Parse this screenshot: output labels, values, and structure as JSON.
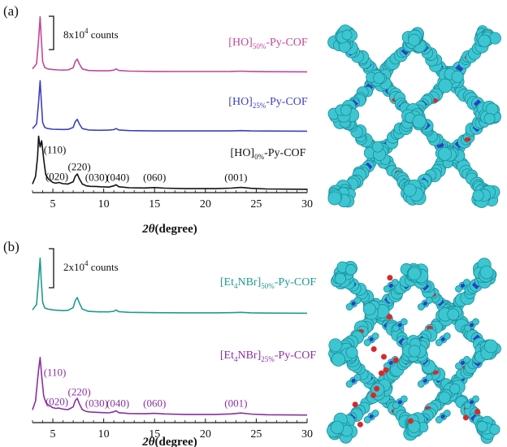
{
  "figure": {
    "panels": [
      {
        "label": "(a)"
      },
      {
        "label": "(b)"
      }
    ]
  },
  "chart_data": [
    {
      "type": "line",
      "panel": "(a)",
      "xlabel_symbol": "2θ",
      "xlabel_unit": "(degree)",
      "xlim": [
        3,
        30
      ],
      "xticks": [
        5,
        10,
        15,
        20,
        25,
        30
      ],
      "scale_bar": {
        "mantissa": "8x10",
        "exponent": "4",
        "unit": "counts"
      },
      "series": [
        {
          "name_main": "[HO]",
          "name_sub": "50%",
          "name_tail": "-Py-COF",
          "color": "#c0479a",
          "x": [
            3.0,
            3.4,
            3.6,
            3.75,
            3.85,
            4.0,
            4.2,
            4.5,
            5.0,
            5.5,
            6.0,
            6.5,
            7.0,
            7.2,
            7.4,
            7.6,
            7.9,
            8.5,
            9.5,
            10.5,
            11.0,
            11.2,
            11.5,
            12.5,
            15.0,
            18.0,
            21.0,
            22.5,
            23.5,
            24.5,
            26.0,
            30.0
          ],
          "y": [
            0.22,
            0.55,
            2.1,
            3.6,
            2.4,
            0.7,
            0.32,
            0.22,
            0.18,
            0.16,
            0.15,
            0.16,
            0.3,
            0.7,
            0.85,
            0.55,
            0.22,
            0.12,
            0.1,
            0.1,
            0.14,
            0.22,
            0.12,
            0.08,
            0.06,
            0.05,
            0.05,
            0.06,
            0.08,
            0.06,
            0.04,
            0.03
          ]
        },
        {
          "name_main": "[HO]",
          "name_sub": "25%",
          "name_tail": "-Py-COF",
          "color": "#3d42b8",
          "x": [
            3.0,
            3.4,
            3.6,
            3.75,
            3.85,
            4.0,
            4.2,
            4.5,
            5.0,
            5.5,
            6.0,
            6.5,
            7.0,
            7.2,
            7.4,
            7.6,
            7.9,
            8.5,
            9.5,
            10.5,
            11.0,
            11.2,
            11.5,
            12.5,
            15.0,
            18.0,
            21.0,
            22.5,
            23.5,
            24.5,
            26.0,
            30.0
          ],
          "y": [
            0.2,
            0.5,
            1.9,
            3.3,
            2.2,
            0.6,
            0.28,
            0.2,
            0.16,
            0.15,
            0.14,
            0.15,
            0.28,
            0.65,
            0.8,
            0.5,
            0.2,
            0.11,
            0.09,
            0.1,
            0.13,
            0.2,
            0.11,
            0.07,
            0.05,
            0.05,
            0.05,
            0.05,
            0.07,
            0.05,
            0.04,
            0.03
          ]
        },
        {
          "name_main": "[HO]",
          "name_sub": "0%",
          "name_tail": "-Py-COF",
          "color": "#111111",
          "x": [
            3.0,
            3.3,
            3.5,
            3.6,
            3.75,
            3.9,
            4.1,
            4.3,
            4.6,
            5.0,
            5.3,
            5.6,
            6.0,
            6.5,
            7.0,
            7.2,
            7.4,
            7.6,
            7.9,
            8.3,
            8.7,
            9.2,
            9.7,
            10.5,
            11.0,
            11.2,
            11.5,
            12.5,
            14.0,
            15.0,
            16.0,
            18.0,
            21.0,
            22.5,
            23.5,
            24.5,
            26.0,
            30.0
          ],
          "y": [
            0.4,
            0.9,
            2.2,
            3.5,
            2.8,
            3.2,
            2.0,
            1.0,
            0.7,
            0.5,
            0.45,
            0.5,
            0.42,
            0.4,
            0.55,
            0.9,
            1.05,
            0.75,
            0.4,
            0.28,
            0.25,
            0.24,
            0.22,
            0.2,
            0.28,
            0.35,
            0.22,
            0.16,
            0.14,
            0.17,
            0.13,
            0.1,
            0.1,
            0.13,
            0.18,
            0.12,
            0.08,
            0.06
          ]
        }
      ],
      "peak_labels": [
        {
          "text": "(110)",
          "x": 5.2,
          "dy": 2.4,
          "color": "#111111"
        },
        {
          "text": "(020)",
          "x": 5.4,
          "dy": 0.65,
          "color": "#111111"
        },
        {
          "text": "(220)",
          "x": 7.6,
          "dy": 1.3,
          "color": "#111111"
        },
        {
          "text": "(030)",
          "x": 9.3,
          "dy": 0.6,
          "color": "#111111"
        },
        {
          "text": "(040)",
          "x": 11.4,
          "dy": 0.6,
          "color": "#111111"
        },
        {
          "text": "(060)",
          "x": 15.0,
          "dy": 0.6,
          "color": "#111111"
        },
        {
          "text": "(001)",
          "x": 23.0,
          "dy": 0.6,
          "color": "#111111"
        }
      ]
    },
    {
      "type": "line",
      "panel": "(b)",
      "xlabel_symbol": "2θ",
      "xlabel_unit": "(degree)",
      "xlim": [
        3,
        30
      ],
      "xticks": [
        5,
        10,
        15,
        20,
        25,
        30
      ],
      "scale_bar": {
        "mantissa": "2x10",
        "exponent": "4",
        "unit": "counts"
      },
      "series": [
        {
          "name_main": "[Et",
          "name_mid_sub": "4",
          "name_mid": "NBr]",
          "name_sub": "50%",
          "name_tail": "-Py-COF",
          "color": "#1f9a8f",
          "x": [
            3.0,
            3.4,
            3.6,
            3.75,
            3.85,
            4.0,
            4.2,
            4.5,
            5.0,
            5.5,
            6.0,
            6.5,
            7.0,
            7.2,
            7.4,
            7.6,
            7.9,
            8.5,
            9.5,
            10.5,
            11.0,
            11.2,
            11.5,
            12.5,
            15.0,
            18.0,
            21.0,
            22.5,
            23.5,
            24.5,
            26.0,
            30.0
          ],
          "y": [
            0.25,
            0.6,
            2.2,
            3.6,
            2.3,
            0.75,
            0.38,
            0.3,
            0.25,
            0.22,
            0.2,
            0.22,
            0.4,
            0.85,
            1.05,
            0.7,
            0.3,
            0.15,
            0.12,
            0.12,
            0.16,
            0.24,
            0.13,
            0.09,
            0.07,
            0.06,
            0.06,
            0.07,
            0.09,
            0.06,
            0.04,
            0.03
          ]
        },
        {
          "name_main": "[Et",
          "name_mid_sub": "4",
          "name_mid": "NBr]",
          "name_sub": "25%",
          "name_tail": "-Py-COF",
          "color": "#8a2fa0",
          "x": [
            3.0,
            3.3,
            3.5,
            3.6,
            3.75,
            3.9,
            4.1,
            4.3,
            4.6,
            5.0,
            5.3,
            5.6,
            6.0,
            6.5,
            7.0,
            7.2,
            7.4,
            7.6,
            7.9,
            8.3,
            8.7,
            9.2,
            9.7,
            10.5,
            11.0,
            11.2,
            11.5,
            12.5,
            14.0,
            15.0,
            16.0,
            18.0,
            21.0,
            22.5,
            23.5,
            24.5,
            26.0,
            30.0
          ],
          "y": [
            0.4,
            1.0,
            2.4,
            3.0,
            3.8,
            2.6,
            1.3,
            0.9,
            0.7,
            0.55,
            0.5,
            0.52,
            0.45,
            0.42,
            0.6,
            1.0,
            1.15,
            0.8,
            0.42,
            0.3,
            0.27,
            0.25,
            0.23,
            0.21,
            0.28,
            0.35,
            0.22,
            0.17,
            0.15,
            0.18,
            0.14,
            0.11,
            0.11,
            0.14,
            0.2,
            0.13,
            0.09,
            0.07
          ]
        }
      ],
      "peak_labels": [
        {
          "text": "(110)",
          "x": 5.2,
          "dy": 2.6,
          "color": "#8a2fa0"
        },
        {
          "text": "(020)",
          "x": 5.4,
          "dy": 0.7,
          "color": "#8a2fa0"
        },
        {
          "text": "(220)",
          "x": 7.6,
          "dy": 1.35,
          "color": "#8a2fa0"
        },
        {
          "text": "(030)",
          "x": 9.3,
          "dy": 0.6,
          "color": "#8a2fa0"
        },
        {
          "text": "(040)",
          "x": 11.4,
          "dy": 0.6,
          "color": "#8a2fa0"
        },
        {
          "text": "(060)",
          "x": 15.0,
          "dy": 0.6,
          "color": "#8a2fa0"
        },
        {
          "text": "(001)",
          "x": 23.0,
          "dy": 0.6,
          "color": "#8a2fa0"
        }
      ]
    }
  ],
  "structures": [
    {
      "name": "COF framework (a)",
      "atom_color": "#3cc6d2",
      "accent_red": "#d62a2a",
      "accent_blue": "#2a3fc8",
      "guest": false
    },
    {
      "name": "COF framework (b)",
      "atom_color": "#3cc6d2",
      "accent_red": "#d62a2a",
      "accent_blue": "#2a3fc8",
      "guest": true
    }
  ]
}
